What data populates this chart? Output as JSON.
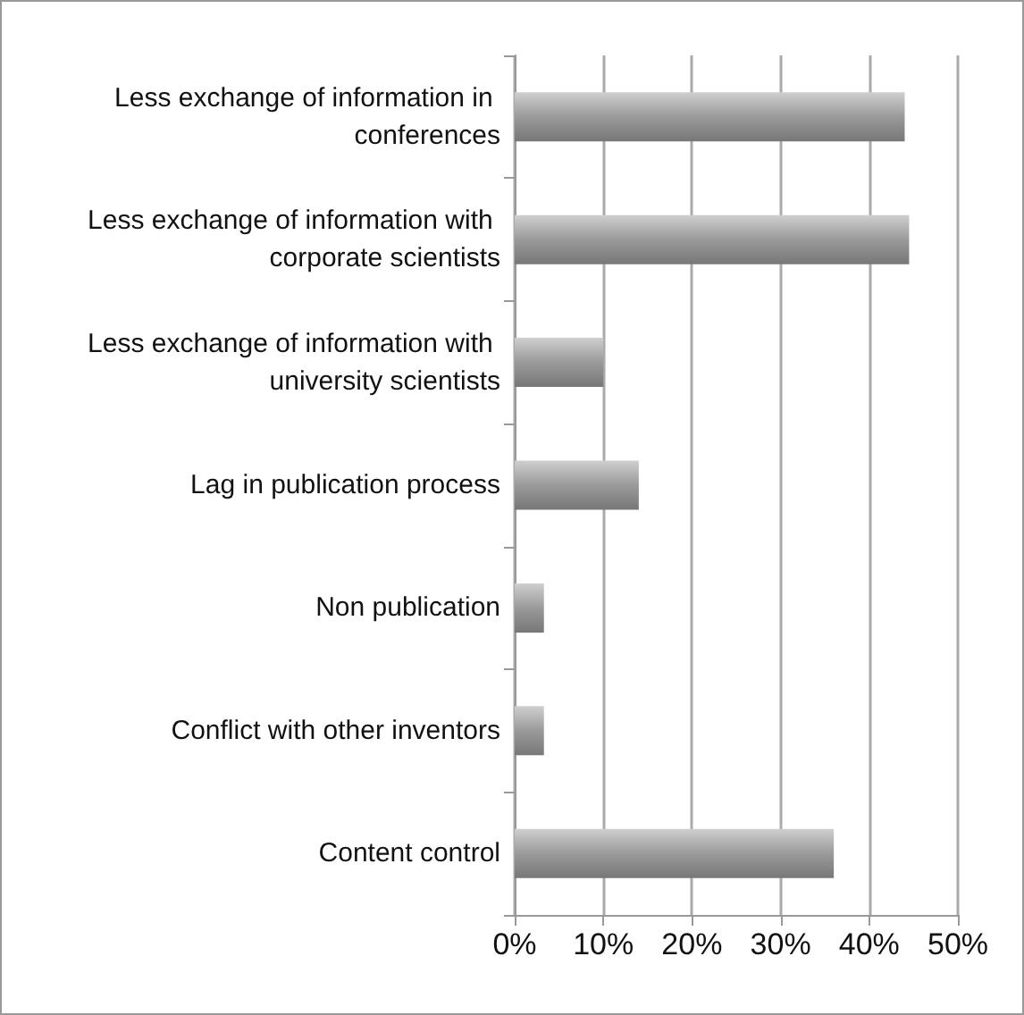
{
  "chart_data": {
    "type": "bar",
    "orientation": "horizontal",
    "categories": [
      "Less exchange of information in conferences",
      "Less exchange of information with corporate scientists",
      "Less exchange of information with university scientists",
      "Lag in publication process",
      "Non publication",
      "Conflict with other inventors",
      "Content control"
    ],
    "values": [
      44,
      44.5,
      10,
      14,
      3.3,
      3.3,
      36
    ],
    "color": "#9a9a9a",
    "xlim": [
      0,
      50
    ],
    "xticks": [
      {
        "value": 0,
        "label": "0%"
      },
      {
        "value": 10,
        "label": "10%"
      },
      {
        "value": 20,
        "label": "20%"
      },
      {
        "value": 30,
        "label": "30%"
      },
      {
        "value": 40,
        "label": "40%"
      },
      {
        "value": 50,
        "label": "50%"
      }
    ],
    "grid": "x"
  }
}
